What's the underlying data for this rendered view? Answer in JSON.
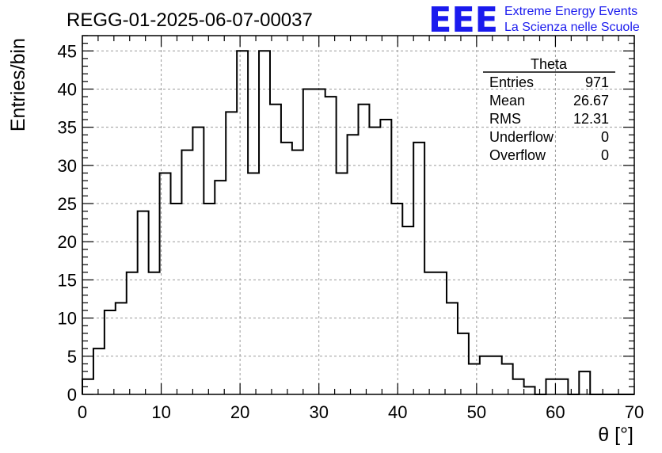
{
  "chart_data": {
    "type": "bar",
    "title": "REGG-01-2025-06-07-00037",
    "xlabel": "θ [°]",
    "ylabel": "Entries/bin",
    "xlim": [
      0,
      70
    ],
    "ylim": [
      0,
      47
    ],
    "grid": true,
    "bin_width": 1.4,
    "x_ticks": [
      0,
      10,
      20,
      30,
      40,
      50,
      60,
      70
    ],
    "y_ticks": [
      0,
      5,
      10,
      15,
      20,
      25,
      30,
      35,
      40,
      45
    ],
    "values": [
      2,
      6,
      11,
      12,
      16,
      24,
      16,
      29,
      25,
      32,
      35,
      25,
      28,
      37,
      45,
      29,
      45,
      38,
      33,
      32,
      40,
      40,
      39,
      29,
      34,
      38,
      35,
      36,
      25,
      22,
      33,
      16,
      16,
      12,
      8,
      4,
      5,
      5,
      4,
      2,
      1,
      0,
      2,
      2,
      0,
      3,
      0,
      0,
      0,
      0
    ]
  },
  "stats_box": {
    "name": "Theta",
    "rows": [
      {
        "label": "Entries",
        "value": "971"
      },
      {
        "label": "Mean",
        "value": "26.67"
      },
      {
        "label": "RMS",
        "value": "12.31"
      },
      {
        "label": "Underflow",
        "value": "0"
      },
      {
        "label": "Overflow",
        "value": "0"
      }
    ]
  },
  "logo": {
    "mark": "EEE",
    "line1": "Extreme Energy Events",
    "line2": "La Scienza nelle Scuole",
    "color": "#1a1aee"
  }
}
